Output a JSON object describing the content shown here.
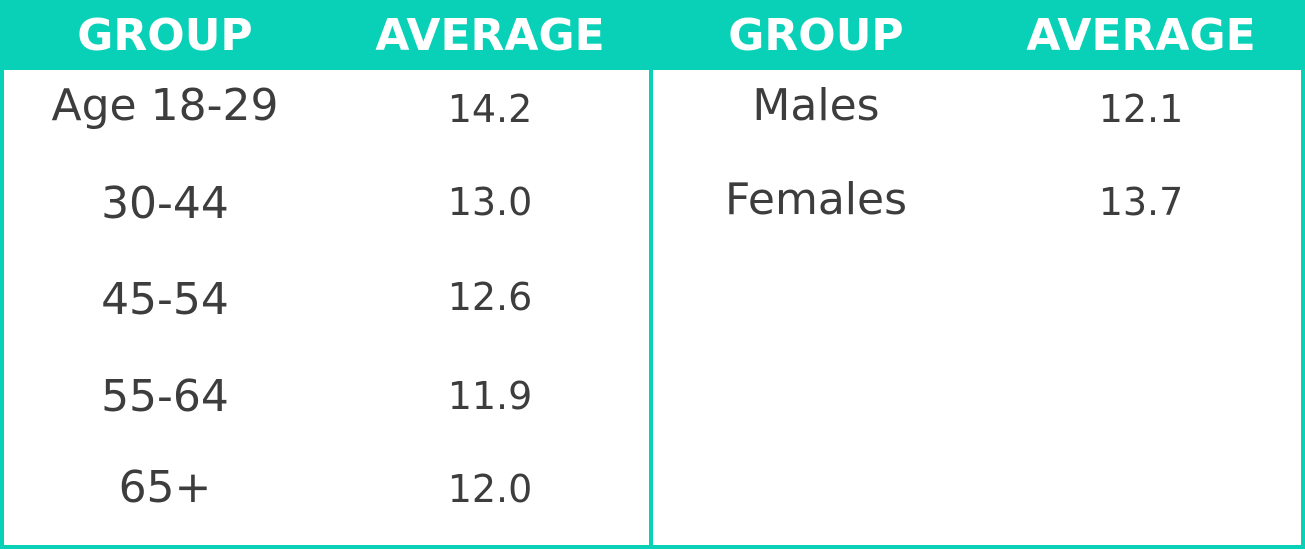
{
  "chart_data": {
    "type": "table",
    "tables": [
      {
        "columns": [
          "GROUP",
          "AVERAGE"
        ],
        "rows": [
          {
            "group": "Age 18-29",
            "average": "14.2"
          },
          {
            "group": "30-44",
            "average": "13.0"
          },
          {
            "group": "45-54",
            "average": "12.6"
          },
          {
            "group": "55-64",
            "average": "11.9"
          },
          {
            "group": "65+",
            "average": "12.0"
          }
        ]
      },
      {
        "columns": [
          "GROUP",
          "AVERAGE"
        ],
        "rows": [
          {
            "group": "Males",
            "average": "12.1"
          },
          {
            "group": "Females",
            "average": "13.7"
          }
        ]
      }
    ]
  },
  "colors": {
    "header_bg": "#08d1b8",
    "header_text": "#ffffff",
    "cell_text": "#3d3d3d",
    "border": "#08d1b8"
  }
}
